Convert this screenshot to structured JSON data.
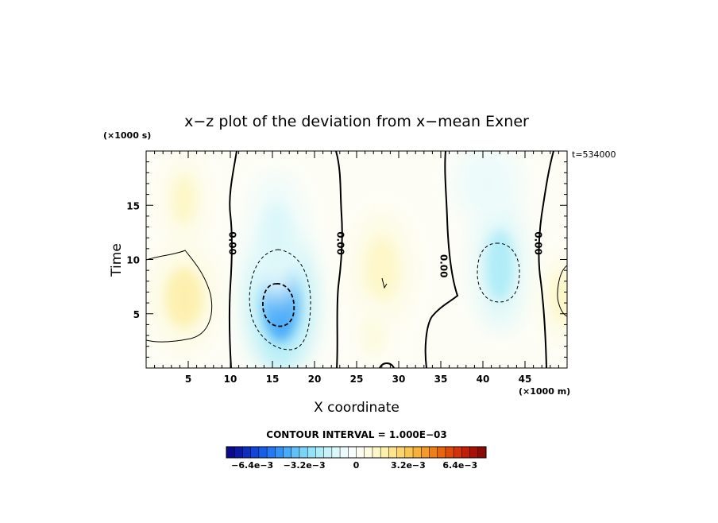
{
  "chart_data": {
    "type": "heatmap",
    "title": "x−z plot of the deviation from x−mean Exner",
    "xlabel": "X coordinate",
    "ylabel": "Time",
    "x_unit": "(×1000 m)",
    "y_unit": "(×1000 s)",
    "time_stamp": "t=534000",
    "xlim": [
      0,
      50
    ],
    "ylim": [
      0,
      20
    ],
    "x_ticks": [
      5,
      10,
      15,
      20,
      25,
      30,
      35,
      40,
      45
    ],
    "y_ticks": [
      5,
      10,
      15
    ],
    "contour_interval_text": "CONTOUR INTERVAL = 1.000E−03",
    "contour_interval": 0.001,
    "colorbar": {
      "min": -0.008,
      "max": 0.008,
      "tick_labels": [
        "−6.4e−3",
        "−3.2e−3",
        "0",
        "3.2e−3",
        "6.4e−3"
      ],
      "tick_values": [
        -0.0064,
        -0.0032,
        0,
        0.0032,
        0.0064
      ],
      "colors": [
        "#0a0a8c",
        "#0c18a6",
        "#0e2ebf",
        "#1346d6",
        "#1a5ee8",
        "#2478f2",
        "#3392f6",
        "#48aaf8",
        "#60c0f8",
        "#7ad4f8",
        "#94e2f8",
        "#aeecf8",
        "#c6f2f8",
        "#dcf7f9",
        "#ecfbfb",
        "#f8fdfd",
        "#fdfdf2",
        "#fdfbe0",
        "#fdf7c8",
        "#fdf0ad",
        "#fde58f",
        "#fbd670",
        "#f9c554",
        "#f6b13c",
        "#f39a28",
        "#ee8018",
        "#e8650e",
        "#e04a08",
        "#d43208",
        "#c21e08",
        "#a81206",
        "#8c0a04"
      ]
    },
    "contour_labels": [
      {
        "text": "0.00",
        "x": 10.2,
        "y": 11.5
      },
      {
        "text": "0.00",
        "x": 23.0,
        "y": 11.5
      },
      {
        "text": "0.00",
        "x": 35.3,
        "y": 9.4
      },
      {
        "text": "0.00",
        "x": 46.5,
        "y": 11.5
      }
    ],
    "field_features": [
      {
        "kind": "negative",
        "x": 16.0,
        "y": 6.0,
        "rx": 4.0,
        "ry": 6.5,
        "value": -0.0045
      },
      {
        "kind": "negative",
        "x": 15.5,
        "y": 12.0,
        "rx": 3.5,
        "ry": 6.0,
        "value": -0.0015
      },
      {
        "kind": "negative",
        "x": 42.0,
        "y": 9.5,
        "rx": 3.0,
        "ry": 6.0,
        "value": -0.0022
      },
      {
        "kind": "negative",
        "x": 40.5,
        "y": 17.0,
        "rx": 4.0,
        "ry": 3.5,
        "value": -0.001
      },
      {
        "kind": "positive",
        "x": 4.5,
        "y": 6.5,
        "rx": 4.0,
        "ry": 5.0,
        "value": 0.0016
      },
      {
        "kind": "positive",
        "x": 4.5,
        "y": 15.5,
        "rx": 2.5,
        "ry": 4.0,
        "value": 0.001
      },
      {
        "kind": "positive",
        "x": 28.0,
        "y": 9.0,
        "rx": 3.5,
        "ry": 5.5,
        "value": 0.0012
      },
      {
        "kind": "positive",
        "x": 27.0,
        "y": 3.0,
        "rx": 2.5,
        "ry": 3.5,
        "value": 0.0008
      },
      {
        "kind": "positive",
        "x": 49.5,
        "y": 6.5,
        "rx": 2.5,
        "ry": 4.0,
        "value": 0.0012
      }
    ]
  }
}
